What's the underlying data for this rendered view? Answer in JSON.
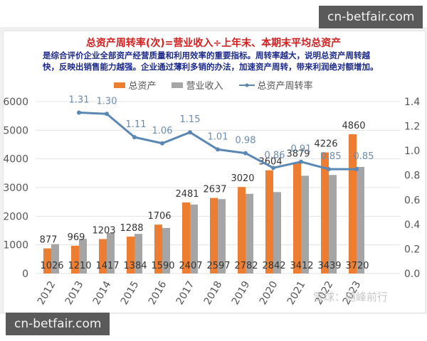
{
  "watermarks": {
    "top": "cn-betfair.com",
    "bottom": "cn-betfair.com"
  },
  "header": {
    "title": "总资产周转率(次)=营业收入÷上年末、本期末平均总资产",
    "subtitle_line1": "是综合评价企业全部资产经营质量和利用效率的重要指标。周转率越大，说明总资产周转越",
    "subtitle_line2": "快，反映出销售能力越强。企业通过薄利多销的办法，加速资产周转，带来利润绝对额增加。"
  },
  "credit": "雪球：随峰前行",
  "colors": {
    "assets": "#ed7d31",
    "revenue": "#a5a5a5",
    "turnover": "#5b87b5",
    "title": "#d22020",
    "subtitle": "#1c2a8a"
  },
  "chart_data": {
    "type": "bar",
    "title": "总资产周转率(次)=营业收入÷上年末、本期末平均总资产",
    "categories": [
      "2012",
      "2013",
      "2014",
      "2015",
      "2016",
      "2017",
      "2018",
      "2019",
      "2020",
      "2021",
      "2022",
      "2023"
    ],
    "series": [
      {
        "name": "总资产",
        "type": "bar",
        "axis": "left",
        "values": [
          877,
          969,
          1203,
          1288,
          1706,
          2481,
          2637,
          3020,
          3604,
          3879,
          4226,
          4860
        ]
      },
      {
        "name": "营业收入",
        "type": "bar",
        "axis": "left",
        "values": [
          1026,
          1210,
          1417,
          1384,
          1590,
          2407,
          2597,
          2782,
          2842,
          3412,
          3439,
          3720
        ]
      },
      {
        "name": "总资产周转率",
        "type": "line",
        "axis": "right",
        "values": [
          null,
          1.31,
          1.3,
          1.11,
          1.06,
          1.15,
          1.01,
          0.98,
          0.86,
          0.91,
          0.85,
          0.85
        ]
      }
    ],
    "left_axis": {
      "ticks": [
        "0",
        "1000",
        "2000",
        "3000",
        "4000",
        "5000",
        "6000"
      ],
      "ylim": [
        0,
        6000
      ]
    },
    "right_axis": {
      "ticks": [
        "0.0",
        "0.2",
        "0.4",
        "0.6",
        "0.8",
        "1.0",
        "1.2",
        "1.4"
      ],
      "ylim": [
        0,
        1.4
      ]
    },
    "legend": [
      "总资产",
      "营业收入",
      "总资产周转率"
    ],
    "legend_position": "top",
    "grid": true,
    "xlabel": "",
    "ylabel": ""
  }
}
